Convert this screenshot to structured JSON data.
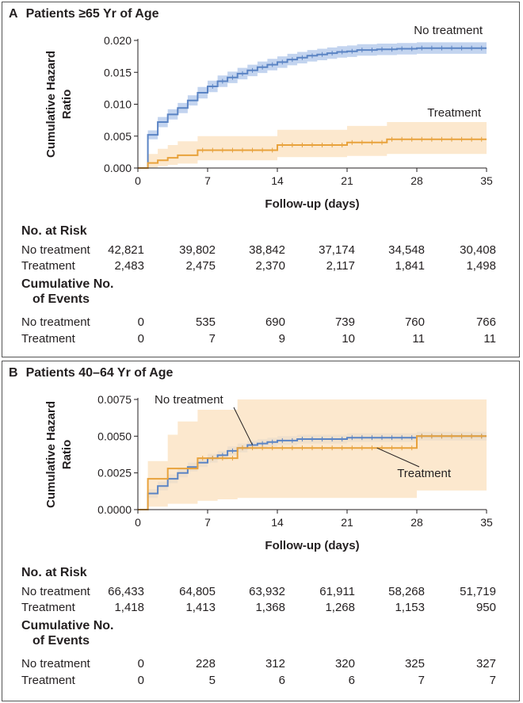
{
  "chart_data": [
    {
      "type": "line",
      "panel_letter": "A",
      "title": "Patients ≥65 Yr of Age",
      "ylabel": "Cumulative Hazard Ratio",
      "xlabel": "Follow-up (days)",
      "xlim": [
        0,
        35
      ],
      "ylim": [
        0,
        0.02
      ],
      "x_ticks": [
        0,
        7,
        14,
        21,
        28,
        35
      ],
      "y_ticks": [
        "0.000",
        "0.005",
        "0.010",
        "0.015",
        "0.020"
      ],
      "y_tick_values": [
        0,
        0.005,
        0.01,
        0.015,
        0.02
      ],
      "series": [
        {
          "name": "No treatment",
          "color": "#5b84c4",
          "band_color": "#b9cdec",
          "x": [
            0,
            1,
            2,
            3,
            4,
            5,
            6,
            7,
            8,
            9,
            10,
            11,
            12,
            13,
            14,
            15,
            16,
            17,
            18,
            19,
            20,
            21,
            22,
            24,
            26,
            28,
            30,
            35
          ],
          "y": [
            0,
            0.0052,
            0.0072,
            0.0084,
            0.0094,
            0.0106,
            0.0118,
            0.0128,
            0.0136,
            0.0142,
            0.0148,
            0.0153,
            0.0158,
            0.0162,
            0.0166,
            0.017,
            0.0173,
            0.0176,
            0.0178,
            0.018,
            0.0182,
            0.0183,
            0.0185,
            0.0186,
            0.0187,
            0.0188,
            0.0188,
            0.0188
          ],
          "lower": [
            0,
            0.0045,
            0.0064,
            0.0076,
            0.0086,
            0.0098,
            0.0109,
            0.0119,
            0.0127,
            0.0133,
            0.0139,
            0.0144,
            0.0149,
            0.0153,
            0.0157,
            0.0161,
            0.0164,
            0.0167,
            0.0169,
            0.0171,
            0.0173,
            0.0174,
            0.0176,
            0.0177,
            0.0178,
            0.0179,
            0.0179,
            0.0179
          ],
          "upper": [
            0,
            0.0059,
            0.008,
            0.0092,
            0.0102,
            0.0114,
            0.0127,
            0.0137,
            0.0145,
            0.0151,
            0.0157,
            0.0162,
            0.0167,
            0.0171,
            0.0175,
            0.0179,
            0.0182,
            0.0185,
            0.0187,
            0.0189,
            0.0191,
            0.0192,
            0.0194,
            0.0195,
            0.0196,
            0.0197,
            0.0197,
            0.0197
          ]
        },
        {
          "name": "Treatment",
          "color": "#e8a23c",
          "band_color": "#fbe2c2",
          "x": [
            0,
            1,
            2,
            3,
            4,
            6,
            14,
            21,
            25,
            35
          ],
          "y": [
            0,
            0.0008,
            0.0012,
            0.0016,
            0.002,
            0.0028,
            0.0036,
            0.004,
            0.0045,
            0.0045
          ],
          "lower": [
            0,
            0.0001,
            0.0003,
            0.0005,
            0.0007,
            0.0012,
            0.0017,
            0.0019,
            0.0022,
            0.0022
          ],
          "upper": [
            0,
            0.0022,
            0.003,
            0.0036,
            0.0042,
            0.005,
            0.006,
            0.0066,
            0.0072,
            0.0072
          ]
        }
      ],
      "risk_table": {
        "header": "No. at Risk",
        "rows": [
          {
            "label": "No treatment",
            "values": [
              "42,821",
              "39,802",
              "38,842",
              "37,174",
              "34,548",
              "30,408"
            ]
          },
          {
            "label": "Treatment",
            "values": [
              "2,483",
              "2,475",
              "2,370",
              "2,117",
              "1,841",
              "1,498"
            ]
          }
        ]
      },
      "events_table": {
        "header_line1": "Cumulative No.",
        "header_line2": "of Events",
        "rows": [
          {
            "label": "No treatment",
            "values": [
              "0",
              "535",
              "690",
              "739",
              "760",
              "766"
            ]
          },
          {
            "label": "Treatment",
            "values": [
              "0",
              "7",
              "9",
              "10",
              "11",
              "11"
            ]
          }
        ]
      }
    },
    {
      "type": "line",
      "panel_letter": "B",
      "title": "Patients 40–64 Yr of Age",
      "ylabel": "Cumulative Hazard Ratio",
      "xlabel": "Follow-up (days)",
      "xlim": [
        0,
        35
      ],
      "ylim": [
        0,
        0.0075
      ],
      "x_ticks": [
        0,
        7,
        14,
        21,
        28,
        35
      ],
      "y_ticks": [
        "0.0000",
        "0.0025",
        "0.0050",
        "0.0075"
      ],
      "y_tick_values": [
        0,
        0.0025,
        0.005,
        0.0075
      ],
      "series": [
        {
          "name": "No treatment",
          "color": "#5b84c4",
          "band_color": "#b9cdec",
          "x": [
            0,
            1,
            2,
            3,
            4,
            5,
            6,
            7,
            8,
            9,
            10,
            11,
            12,
            13,
            14,
            16,
            18,
            21,
            24,
            28,
            35
          ],
          "y": [
            0,
            0.0011,
            0.0016,
            0.0021,
            0.0025,
            0.0029,
            0.0032,
            0.0035,
            0.0037,
            0.004,
            0.0042,
            0.0044,
            0.0045,
            0.0046,
            0.0047,
            0.0048,
            0.0048,
            0.0049,
            0.0049,
            0.005,
            0.005
          ],
          "lower": [
            0,
            0.0008,
            0.0013,
            0.0018,
            0.0022,
            0.0026,
            0.0029,
            0.0032,
            0.0034,
            0.0037,
            0.0039,
            0.0041,
            0.0042,
            0.0043,
            0.0044,
            0.0045,
            0.0045,
            0.0046,
            0.0046,
            0.0047,
            0.0047
          ],
          "upper": [
            0,
            0.0014,
            0.0019,
            0.0024,
            0.0028,
            0.0032,
            0.0035,
            0.0038,
            0.004,
            0.0043,
            0.0045,
            0.0047,
            0.0048,
            0.0049,
            0.005,
            0.0051,
            0.0051,
            0.0052,
            0.0052,
            0.0053,
            0.0053
          ]
        },
        {
          "name": "Treatment",
          "color": "#e8a23c",
          "band_color": "#fbe2c2",
          "x": [
            0,
            1,
            3,
            4,
            6,
            7,
            8,
            10,
            28,
            35
          ],
          "y": [
            0,
            0.0021,
            0.0028,
            0.0028,
            0.0035,
            0.0035,
            0.0035,
            0.0042,
            0.005,
            0.005
          ],
          "lower": [
            0,
            0.0002,
            0.0004,
            0.0004,
            0.0006,
            0.0006,
            0.0007,
            0.0008,
            0.0013,
            0.0013
          ],
          "upper": [
            0,
            0.0033,
            0.0051,
            0.006,
            0.0068,
            0.0068,
            0.0068,
            0.0075,
            0.0085,
            0.0085
          ]
        }
      ],
      "risk_table": {
        "header": "No. at Risk",
        "rows": [
          {
            "label": "No treatment",
            "values": [
              "66,433",
              "64,805",
              "63,932",
              "61,911",
              "58,268",
              "51,719"
            ]
          },
          {
            "label": "Treatment",
            "values": [
              "1,418",
              "1,413",
              "1,368",
              "1,268",
              "1,153",
              "950"
            ]
          }
        ]
      },
      "events_table": {
        "header_line1": "Cumulative No.",
        "header_line2": "of Events",
        "rows": [
          {
            "label": "No treatment",
            "values": [
              "0",
              "228",
              "312",
              "320",
              "325",
              "327"
            ]
          },
          {
            "label": "Treatment",
            "values": [
              "0",
              "5",
              "6",
              "6",
              "7",
              "7"
            ]
          }
        ]
      }
    }
  ]
}
